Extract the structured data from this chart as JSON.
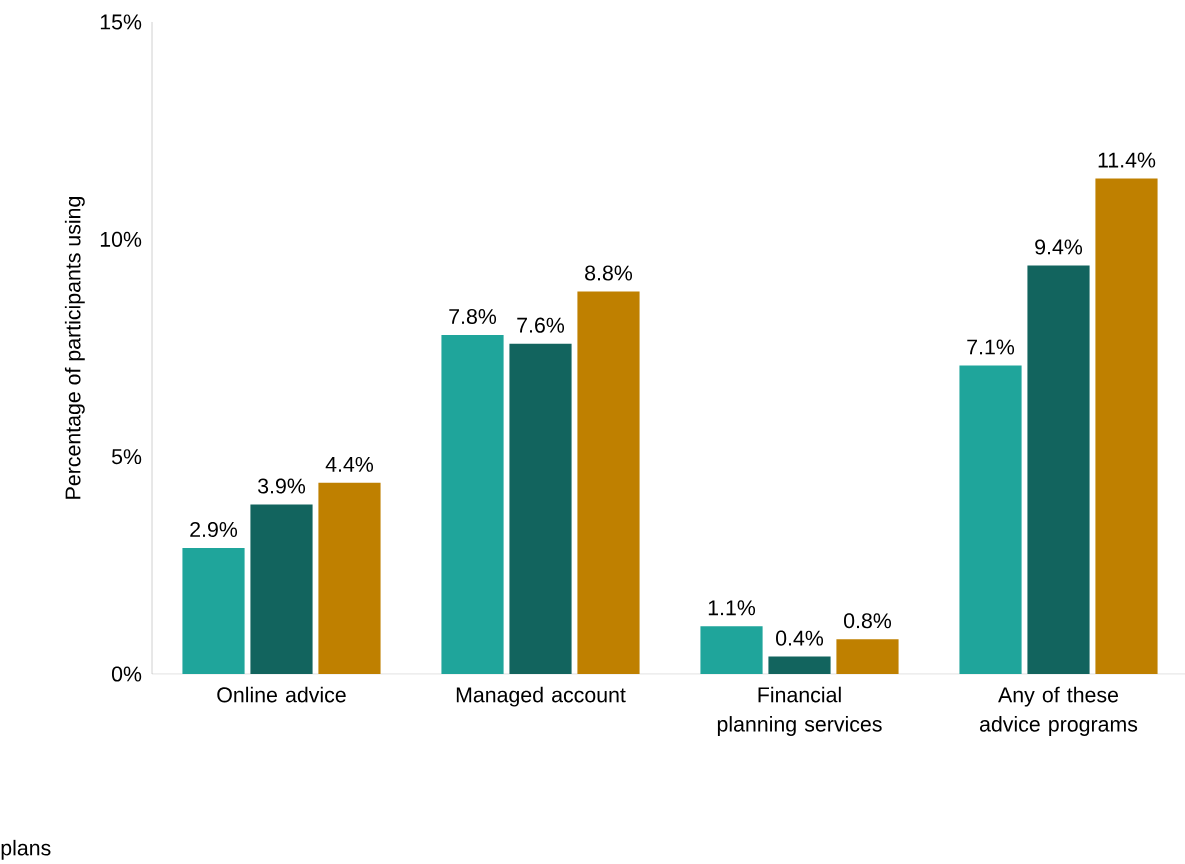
{
  "chart_data": {
    "type": "bar",
    "ylabel": "Percentage of participants using",
    "categories": [
      "Online advice",
      "Managed account",
      "Financial planning services",
      "Any of these advice programs"
    ],
    "series": [
      {
        "color": "#1fa59b",
        "values": [
          2.9,
          7.8,
          1.1,
          7.1
        ],
        "value_labels": [
          "2.9%",
          "7.8%",
          "1.1%",
          "7.1%"
        ]
      },
      {
        "color": "#12645e",
        "values": [
          3.9,
          7.6,
          0.4,
          9.4
        ],
        "value_labels": [
          "3.9%",
          "7.6%",
          "0.4%",
          "9.4%"
        ]
      },
      {
        "color": "#bf8000",
        "values": [
          4.4,
          8.8,
          0.8,
          11.4
        ],
        "value_labels": [
          "4.4%",
          "8.8%",
          "0.8%",
          "11.4%"
        ]
      }
    ],
    "ylim": [
      0,
      15
    ],
    "yticks": [
      {
        "value": 0,
        "label": "0%"
      },
      {
        "value": 5,
        "label": "5%"
      },
      {
        "value": 10,
        "label": "10%"
      },
      {
        "value": 15,
        "label": "15%"
      }
    ],
    "grid": false,
    "annotations": [
      "plans"
    ]
  }
}
